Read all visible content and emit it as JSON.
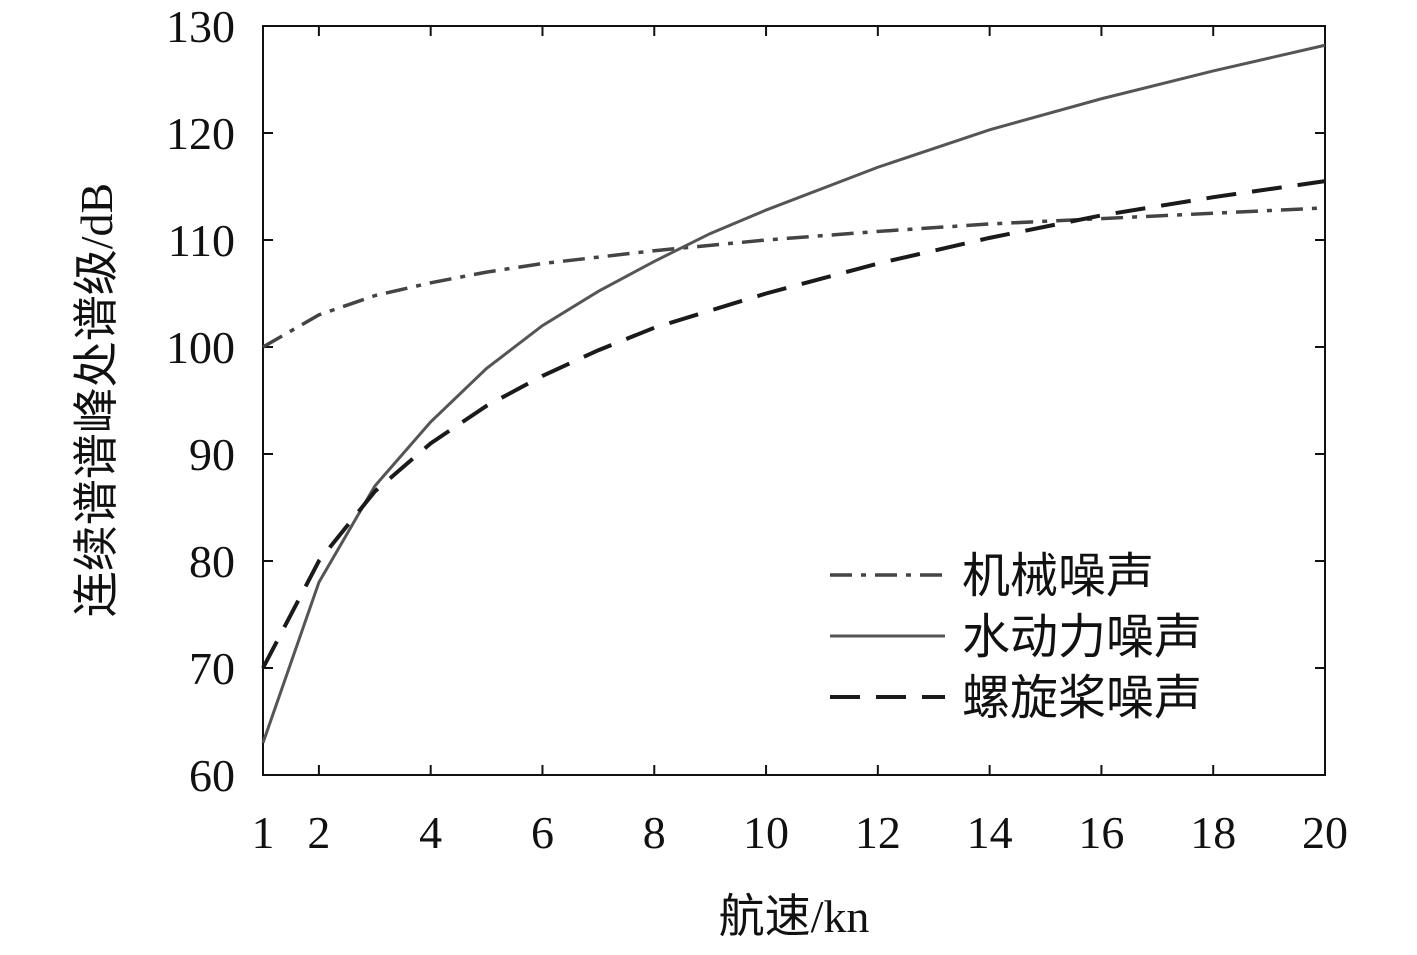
{
  "chart_data": {
    "type": "line",
    "xlabel": "航速/kn",
    "ylabel": "连续谱谱峰处谱级/dB",
    "xlim": [
      1,
      20
    ],
    "ylim": [
      60,
      130
    ],
    "xticks": [
      1,
      2,
      4,
      6,
      8,
      10,
      12,
      14,
      16,
      18,
      20
    ],
    "yticks": [
      60,
      70,
      80,
      90,
      100,
      110,
      120,
      130
    ],
    "grid": false,
    "legend_position": "bottom-right",
    "series": [
      {
        "name": "机械噪声",
        "style": "dash-dot",
        "color": "#444444",
        "x": [
          1,
          2,
          3,
          4,
          5,
          6,
          8,
          10,
          12,
          14,
          16,
          18,
          20
        ],
        "y": [
          100,
          103,
          104.8,
          106,
          107,
          107.8,
          109,
          110,
          110.8,
          111.5,
          112,
          112.5,
          113
        ]
      },
      {
        "name": "水动力噪声",
        "style": "solid",
        "color": "#555555",
        "x": [
          1,
          2,
          3,
          4,
          5,
          6,
          7,
          8,
          9,
          10,
          12,
          14,
          16,
          18,
          20
        ],
        "y": [
          63,
          78,
          87,
          93,
          98,
          102,
          105.2,
          108,
          110.6,
          112.8,
          116.8,
          120.3,
          123.2,
          125.8,
          128.2
        ]
      },
      {
        "name": "螺旋桨噪声",
        "style": "dashed",
        "color": "#1a1a1a",
        "x": [
          1,
          2,
          3,
          4,
          5,
          6,
          7,
          8,
          10,
          12,
          14,
          16,
          18,
          20
        ],
        "y": [
          70,
          80,
          86.5,
          91,
          94.5,
          97.3,
          99.7,
          101.8,
          105,
          107.8,
          110.2,
          112.3,
          114,
          115.5
        ]
      }
    ]
  }
}
